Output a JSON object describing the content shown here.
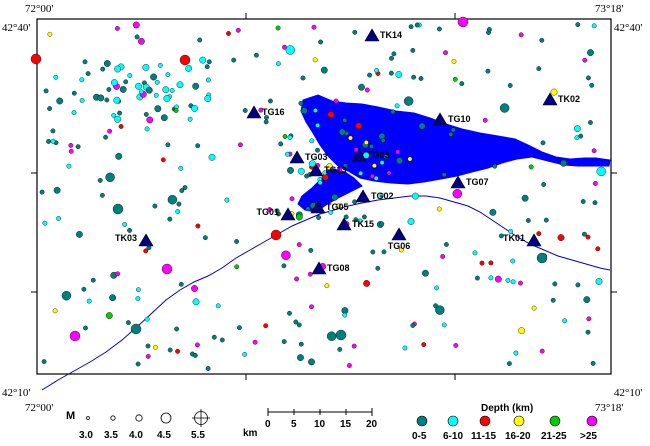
{
  "map": {
    "corners": {
      "top_left_lon": "72°00'",
      "top_left_lat": "42°40'",
      "top_right_lon": "73°18'",
      "top_right_lat": "42°40'",
      "bottom_left_lon": "72°00'",
      "bottom_left_lat": "42°10'",
      "bottom_right_lon": "73°18'",
      "bottom_right_lat": "42°10'"
    },
    "stations": [
      {
        "name": "TK14"
      },
      {
        "name": "TK02"
      },
      {
        "name": "TG16"
      },
      {
        "name": "TG10"
      },
      {
        "name": "TG03"
      },
      {
        "name": "TG03"
      },
      {
        "name": "TG13"
      },
      {
        "name": "TG07"
      },
      {
        "name": "TG02"
      },
      {
        "name": "TG01"
      },
      {
        "name": "TG05"
      },
      {
        "name": "TK15"
      },
      {
        "name": "TG06"
      },
      {
        "name": "TK01"
      },
      {
        "name": "TK03"
      },
      {
        "name": "TG08"
      }
    ]
  },
  "magnitude_legend": {
    "title": "M",
    "values": [
      "3.0",
      "3.5",
      "4.0",
      "4.5",
      "5.5"
    ]
  },
  "scale_bar": {
    "unit": "km",
    "ticks": [
      "0",
      "5",
      "10",
      "15",
      "20"
    ]
  },
  "depth_legend": {
    "title": "Depth  (km)",
    "classes": [
      {
        "label": "0-5",
        "color": "#007f7f"
      },
      {
        "label": "6-10",
        "color": "#00ffff"
      },
      {
        "label": "11-15",
        "color": "#ff0000"
      },
      {
        "label": "16-20",
        "color": "#ffff00"
      },
      {
        "label": "21-25",
        "color": "#00cc00"
      },
      {
        "label": ">25",
        "color": "#ff00ff"
      }
    ]
  },
  "colors": {
    "lake": "#0000ff",
    "river": "#0000cc",
    "station": "#000080",
    "frame": "#000000"
  }
}
